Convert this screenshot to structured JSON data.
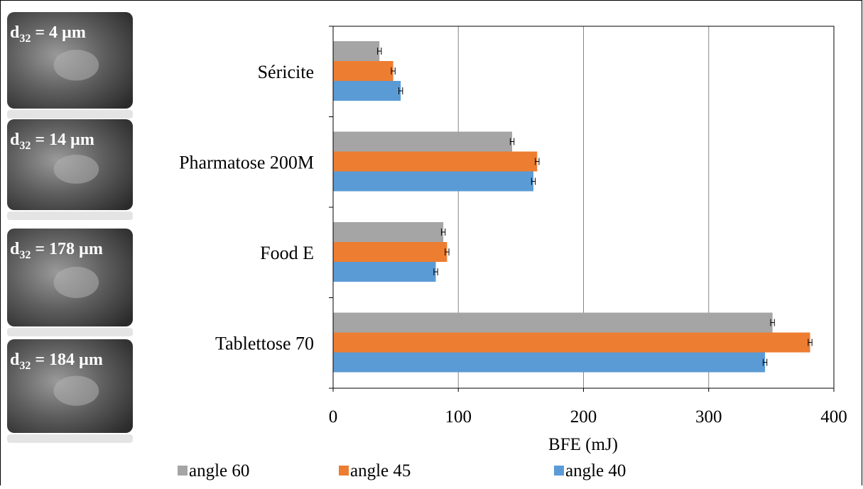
{
  "images": [
    {
      "symbol": "d",
      "subscript": "32",
      "text": " = 4 µm"
    },
    {
      "symbol": "d",
      "subscript": "32",
      "text": " = 14 µm"
    },
    {
      "symbol": "d",
      "subscript": "32",
      "text": " = 178 µm"
    },
    {
      "symbol": "d",
      "subscript": "32",
      "text": " = 184 µm"
    }
  ],
  "chart_data": {
    "type": "bar",
    "orientation": "horizontal",
    "categories": [
      "Séricite",
      "Pharmatose 200M",
      "Food E",
      "Tablettose 70"
    ],
    "series": [
      {
        "name": "angle 60",
        "color": "#a5a5a5",
        "values": [
          37,
          143,
          88,
          351
        ],
        "errors": [
          1.5,
          1.5,
          1.5,
          1.5
        ]
      },
      {
        "name": "angle 45",
        "color": "#ed7d31",
        "values": [
          48,
          163,
          91,
          381
        ],
        "errors": [
          1.5,
          1.5,
          1.5,
          1.5
        ]
      },
      {
        "name": "angle 40",
        "color": "#5b9bd5",
        "values": [
          54,
          160,
          82,
          345
        ],
        "errors": [
          1.5,
          1.5,
          1.5,
          1.5
        ]
      }
    ],
    "xlabel": "BFE (mJ)",
    "xlim": [
      0,
      400
    ],
    "xticks": [
      0,
      100,
      200,
      300,
      400
    ],
    "grid": true,
    "legend": "bottom"
  }
}
